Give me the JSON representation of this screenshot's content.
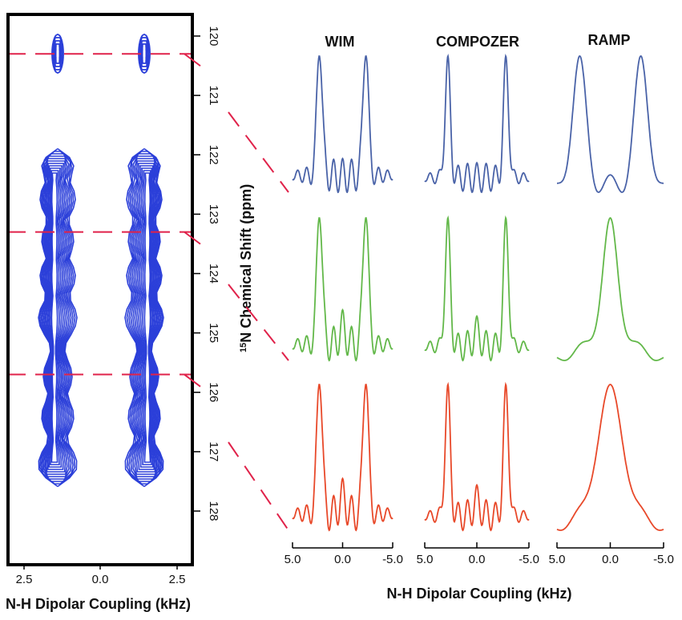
{
  "colors": {
    "contour": "#2b3fd9",
    "guide": "#e0224a",
    "top_row": "#4a63a8",
    "mid_row": "#63b84a",
    "bottom_row": "#e8492a"
  },
  "chart_data": [
    {
      "type": "contour",
      "xlabel": "N-H Dipolar Coupling (kHz)",
      "ylabel": "¹⁵N Chemical Shift (ppm)",
      "ylabel_parts": {
        "sup": "15",
        "rest": "N Chemical Shift (ppm)"
      },
      "xticks": [
        "2.5",
        "0.0",
        "2.5"
      ],
      "yticks": [
        "120",
        "121",
        "122",
        "123",
        "124",
        "125",
        "126",
        "127",
        "128"
      ],
      "ylim": [
        119.5,
        128.5
      ],
      "peak_pair_x_khz": [
        -1.2,
        1.2
      ],
      "peaks_ppm": [
        120.3,
        122.0,
        122.8,
        123.6,
        124.6,
        125.6,
        126.6,
        127.0
      ],
      "slice_ppm": [
        120.3,
        123.3,
        125.7
      ]
    },
    {
      "type": "line",
      "xlabel": "N-H Dipolar Coupling (kHz)",
      "columns": [
        "WIM",
        "COMPOZER",
        "RAMP"
      ],
      "xticks": [
        "5.0",
        "0.0",
        "-5.0"
      ],
      "xlim": [
        5.0,
        -5.0
      ],
      "rows_ppm": [
        120.3,
        123.3,
        125.7
      ],
      "splitting_khz": {
        "WIM": [
          2.3,
          2.3,
          2.3
        ],
        "COMPOZER": [
          2.8,
          2.8,
          2.8
        ],
        "RAMP": [
          2.9,
          0,
          0
        ]
      }
    }
  ]
}
